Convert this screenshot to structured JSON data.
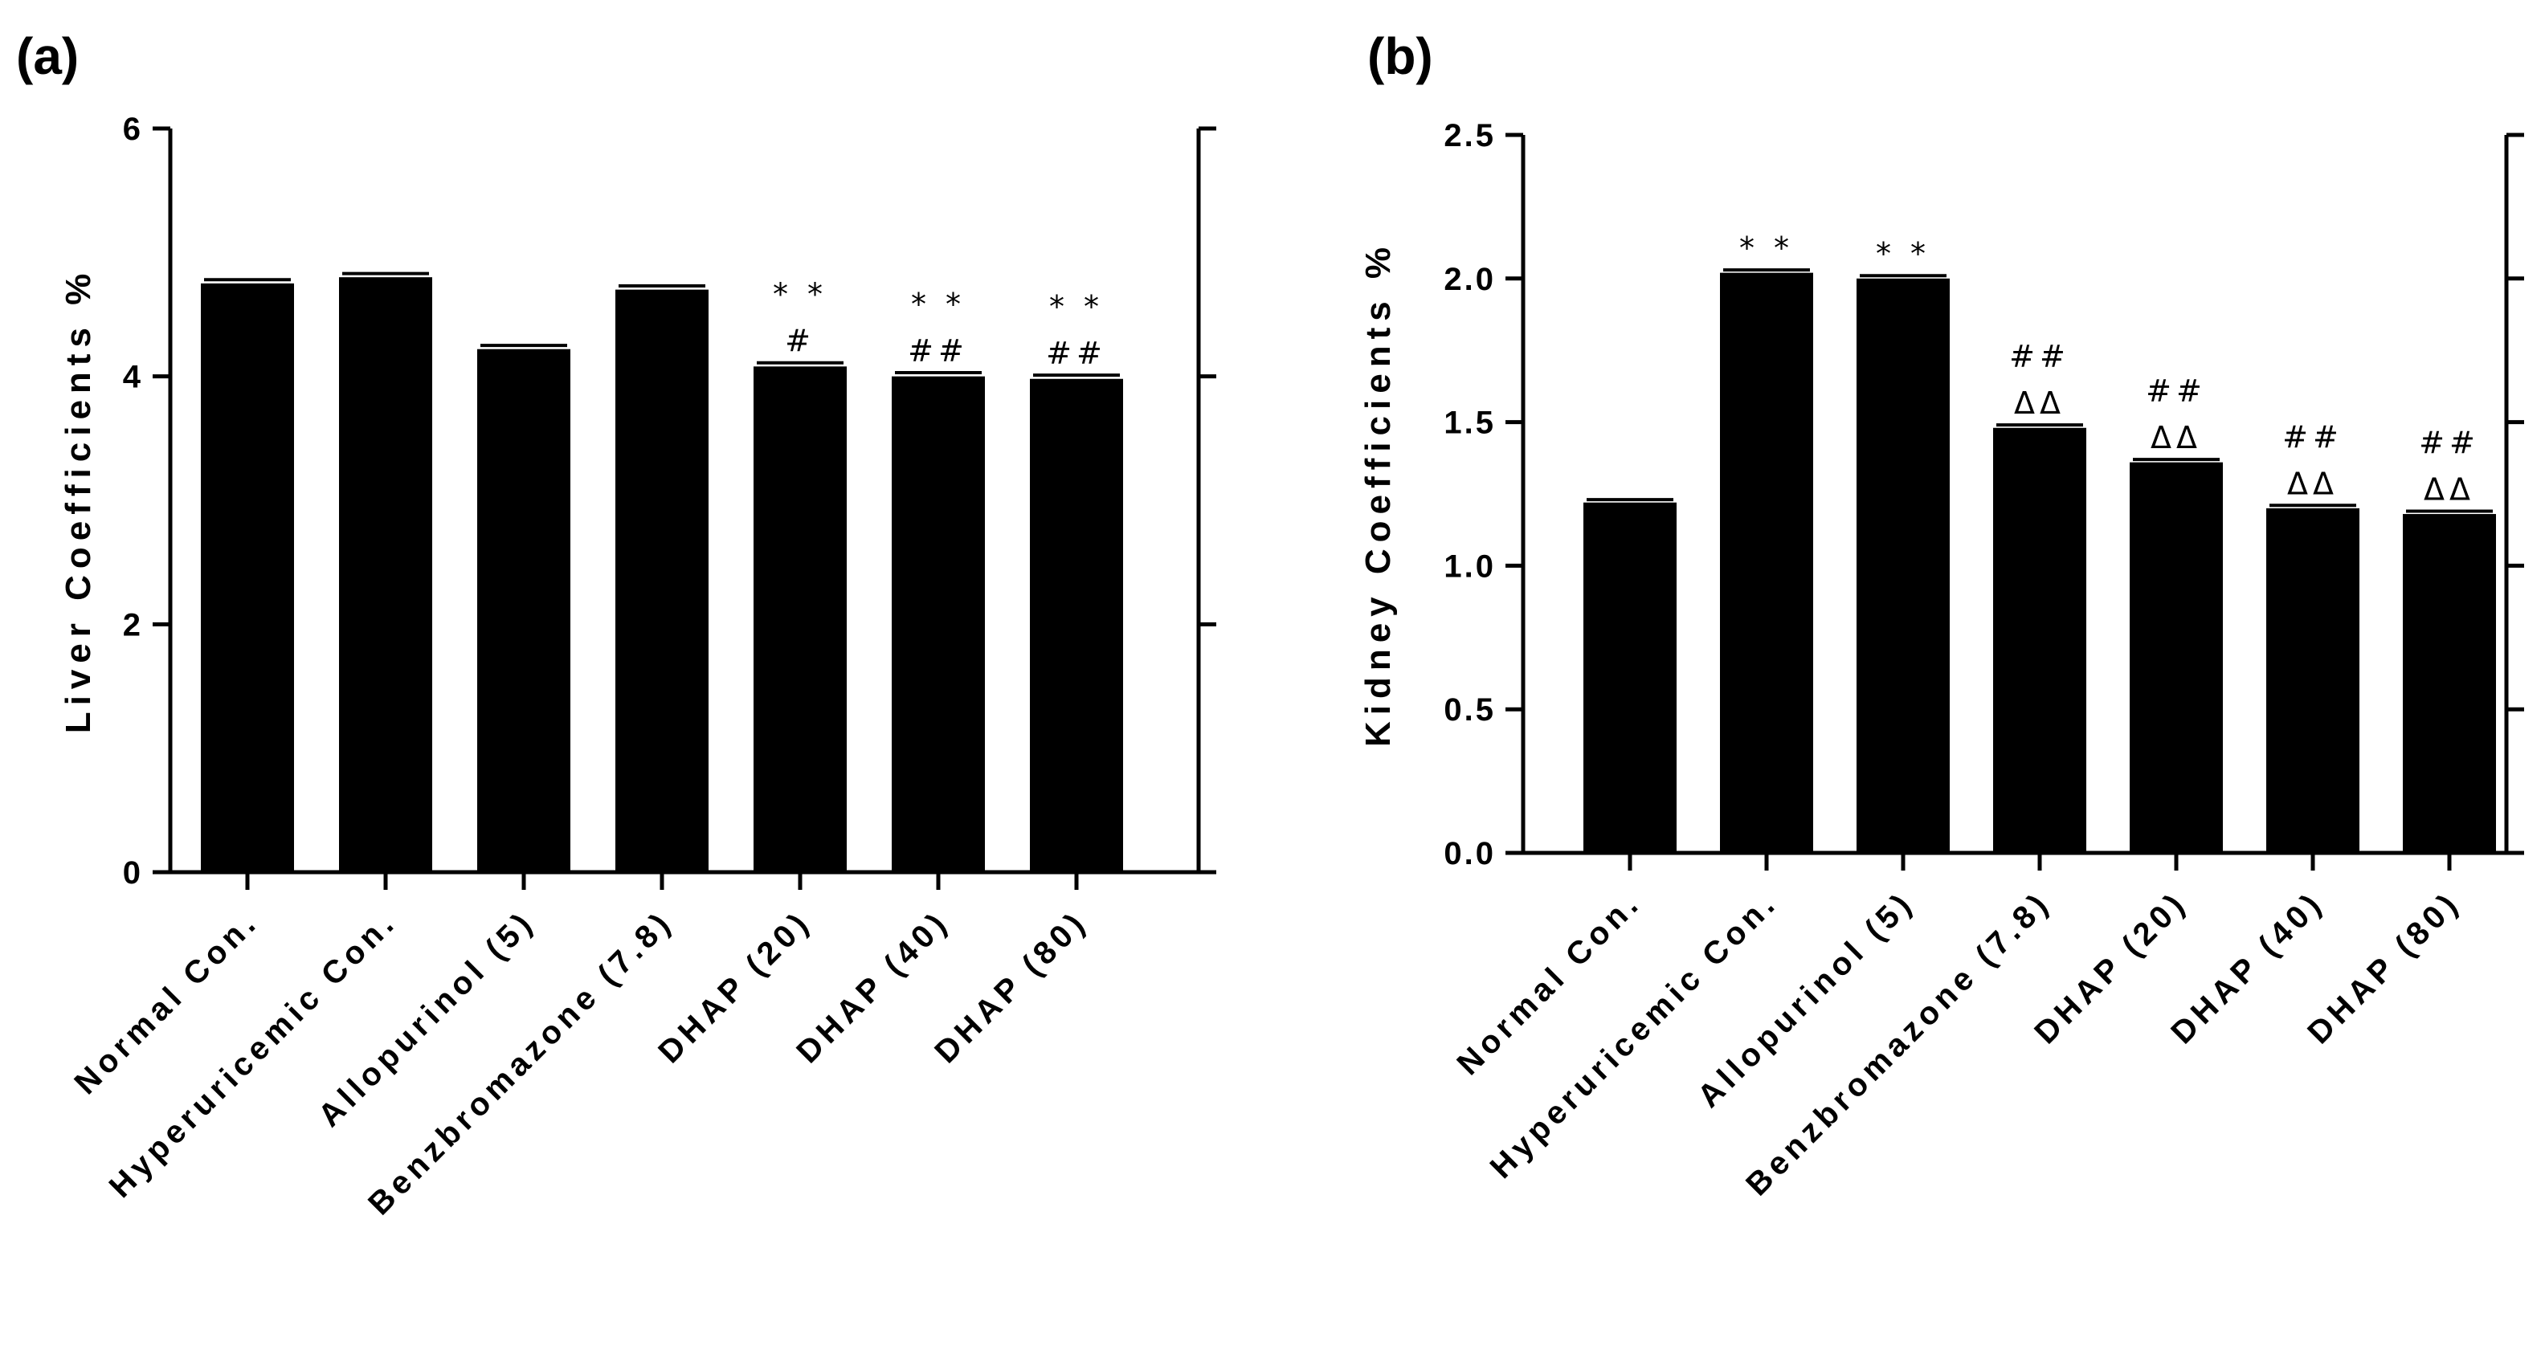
{
  "chart_data": [
    {
      "type": "bar",
      "panel_label": "(a)",
      "ylabel": "Liver Coefficients %",
      "xlabel": "",
      "ylim": [
        0,
        6
      ],
      "yticks": [
        0,
        2,
        4,
        6
      ],
      "ytick_labels": [
        "0",
        "2",
        "4",
        "6"
      ],
      "categories": [
        "Normal Con.",
        "Hyperuricemic Con.",
        "Allopurinol (5)",
        "Benzbromazone (7.8)",
        "DHAP (20)",
        "DHAP (40)",
        "DHAP (80)"
      ],
      "values": [
        4.75,
        4.8,
        4.22,
        4.7,
        4.08,
        4.0,
        3.98
      ],
      "errors": [
        0.03,
        0.03,
        0.03,
        0.03,
        0.03,
        0.03,
        0.03
      ],
      "annotations": [
        {
          "index": 4,
          "lines": [
            "* *",
            "#"
          ]
        },
        {
          "index": 5,
          "lines": [
            "* *",
            "##"
          ]
        },
        {
          "index": 6,
          "lines": [
            "* *",
            "##"
          ]
        }
      ]
    },
    {
      "type": "bar",
      "panel_label": "(b)",
      "ylabel": "Kidney Coefficients %",
      "xlabel": "",
      "ylim": [
        0,
        2.5
      ],
      "yticks": [
        0,
        0.5,
        1.0,
        1.5,
        2.0,
        2.5
      ],
      "ytick_labels": [
        "0.0",
        "0.5",
        "1.0",
        "1.5",
        "2.0",
        "2.5"
      ],
      "categories": [
        "Normal Con.",
        "Hyperuricemic Con.",
        "Allopurinol (5)",
        "Benzbromazone (7.8)",
        "DHAP (20)",
        "DHAP (40)",
        "DHAP (80)"
      ],
      "values": [
        1.22,
        2.02,
        2.0,
        1.48,
        1.36,
        1.2,
        1.18
      ],
      "errors": [
        0.01,
        0.01,
        0.01,
        0.01,
        0.01,
        0.01,
        0.01
      ],
      "annotations": [
        {
          "index": 1,
          "lines": [
            "* *"
          ]
        },
        {
          "index": 2,
          "lines": [
            "* *"
          ]
        },
        {
          "index": 3,
          "lines": [
            "##",
            "ΔΔ"
          ]
        },
        {
          "index": 4,
          "lines": [
            "##",
            "ΔΔ"
          ]
        },
        {
          "index": 5,
          "lines": [
            "##",
            "ΔΔ"
          ]
        },
        {
          "index": 6,
          "lines": [
            "##",
            "ΔΔ"
          ]
        }
      ]
    }
  ]
}
